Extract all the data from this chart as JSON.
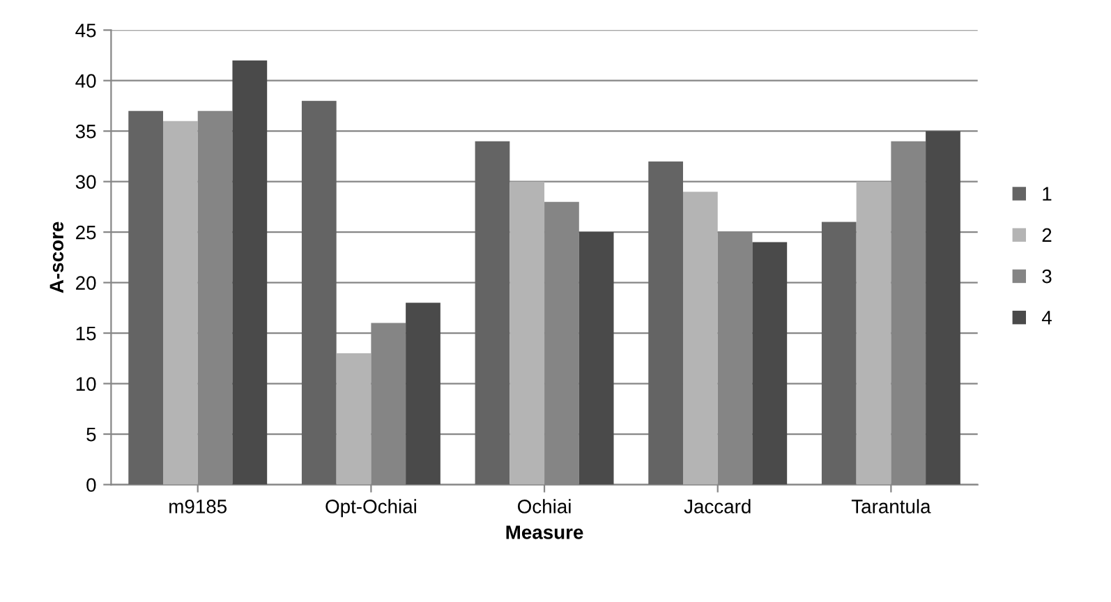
{
  "chart_data": {
    "type": "bar",
    "xlabel": "Measure",
    "ylabel": "A-score",
    "categories": [
      "m9185",
      "Opt-Ochiai",
      "Ochiai",
      "Jaccard",
      "Tarantula"
    ],
    "series": [
      {
        "name": "1",
        "color": "#646464",
        "values": [
          37,
          38,
          34,
          32,
          26
        ]
      },
      {
        "name": "2",
        "color": "#b4b4b4",
        "values": [
          36,
          13,
          30,
          29,
          30
        ]
      },
      {
        "name": "3",
        "color": "#858585",
        "values": [
          37,
          16,
          28,
          25,
          34
        ]
      },
      {
        "name": "4",
        "color": "#4a4a4a",
        "values": [
          42,
          18,
          25,
          24,
          35
        ]
      }
    ],
    "ylim": [
      0,
      45
    ],
    "yticks": [
      0,
      5,
      10,
      15,
      20,
      25,
      30,
      35,
      40,
      45
    ],
    "grid": "y",
    "legend": "right"
  }
}
